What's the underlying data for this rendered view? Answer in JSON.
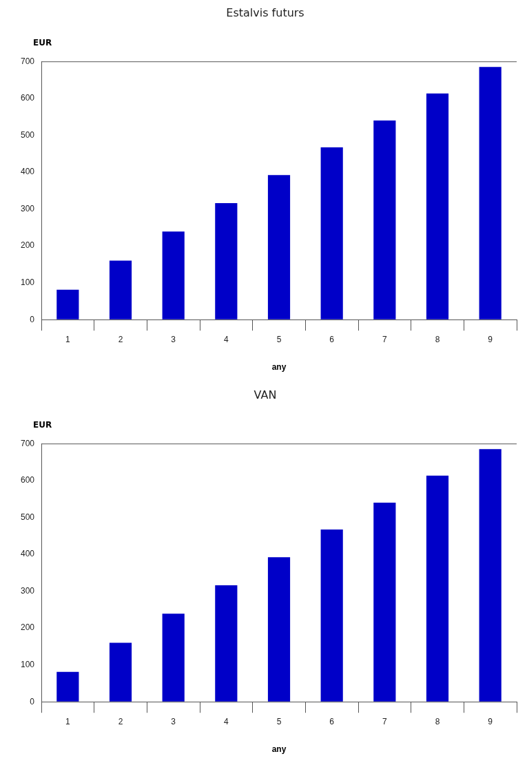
{
  "chart_data": [
    {
      "type": "bar",
      "title": "Estalvis futurs",
      "xlabel": "any",
      "ylabel": "EUR",
      "categories": [
        "1",
        "2",
        "3",
        "4",
        "5",
        "6",
        "7",
        "8",
        "9"
      ],
      "values": [
        81,
        160,
        239,
        316,
        392,
        467,
        540,
        613,
        685
      ],
      "color": "#0000c8",
      "ylim": [
        0,
        700
      ],
      "yticks": [
        0,
        100,
        200,
        300,
        400,
        500,
        600,
        700
      ],
      "grid": false,
      "legend": false
    },
    {
      "type": "bar",
      "title": "VAN",
      "xlabel": "any",
      "ylabel": "EUR",
      "categories": [
        "1",
        "2",
        "3",
        "4",
        "5",
        "6",
        "7",
        "8",
        "9"
      ],
      "values": [
        81,
        160,
        239,
        316,
        392,
        467,
        540,
        613,
        685
      ],
      "color": "#0000c8",
      "ylim": [
        0,
        700
      ],
      "yticks": [
        0,
        100,
        200,
        300,
        400,
        500,
        600,
        700
      ],
      "grid": false,
      "legend": false
    }
  ]
}
